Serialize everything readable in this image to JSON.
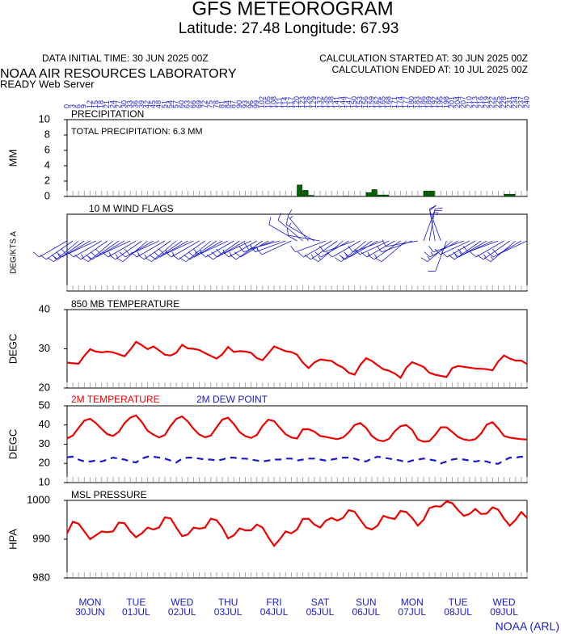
{
  "header": {
    "title": "GFS METEOROGRAM",
    "subtitle": "Latitude: 27.48 Longitude:  67.93",
    "data_time": "DATA INITIAL TIME: 30 JUN 2025 00Z",
    "calc_started": "CALCULATION STARTED AT: 30 JUN 2025 00Z",
    "calc_ended": "CALCULATION ENDED AT: 10 JUL 2025 00Z",
    "lab": "NOAA AIR RESOURCES LABORATORY",
    "server": "READY Web Server"
  },
  "days": [
    {
      "day": "MON",
      "date": "30JUN"
    },
    {
      "day": "TUE",
      "date": "01JUL"
    },
    {
      "day": "WED",
      "date": "02JUL"
    },
    {
      "day": "THU",
      "date": "03JUL"
    },
    {
      "day": "FRI",
      "date": "04JUL"
    },
    {
      "day": "SAT",
      "date": "05JUL"
    },
    {
      "day": "SUN",
      "date": "06JUL"
    },
    {
      "day": "MON",
      "date": "07JUL"
    },
    {
      "day": "TUE",
      "date": "08JUL"
    },
    {
      "day": "WED",
      "date": "09JUL"
    }
  ],
  "footer": "NOAA (ARL)",
  "chart_data": [
    {
      "type": "bar",
      "title": "PRECIPITATION",
      "annotation": "TOTAL PRECIPITATION:   6.3 MM",
      "y_label": "MM",
      "color": "#006400",
      "x": [
        0,
        3,
        6,
        9,
        12,
        15,
        18,
        21,
        24,
        27,
        30,
        33,
        36,
        39,
        42,
        45,
        48,
        51,
        54,
        57,
        60,
        63,
        66,
        69,
        72,
        75,
        78,
        81,
        84,
        87,
        90,
        93,
        96,
        99,
        102,
        105,
        108,
        111,
        114,
        117,
        120,
        123,
        126,
        129,
        132,
        135,
        138,
        141,
        144,
        147,
        150,
        153,
        156,
        159,
        162,
        165,
        168,
        171,
        174,
        177,
        180,
        183,
        186,
        189,
        192,
        195,
        198,
        201,
        204,
        207,
        210,
        213,
        216,
        219,
        222,
        225,
        228,
        231,
        234,
        237,
        240
      ],
      "values": [
        0,
        0,
        0,
        0,
        0,
        0,
        0,
        0,
        0,
        0,
        0,
        0,
        0,
        0,
        0,
        0,
        0,
        0,
        0,
        0,
        0,
        0,
        0,
        0,
        0,
        0,
        0,
        0,
        0,
        0,
        0,
        0,
        0,
        0,
        0,
        0,
        0,
        0,
        0,
        0,
        1.5,
        0.8,
        0.15,
        0,
        0,
        0,
        0,
        0,
        0.05,
        0,
        0,
        0,
        0.5,
        0.9,
        0.2,
        0.2,
        0,
        0,
        0,
        0,
        0,
        0,
        0.7,
        0.7,
        0,
        0,
        0,
        0,
        0,
        0,
        0,
        0,
        0,
        0,
        0,
        0,
        0.3,
        0.3,
        0,
        0,
        0
      ],
      "ylim": [
        0,
        10
      ],
      "yticks": [
        0,
        2,
        4,
        6,
        8,
        10
      ]
    },
    {
      "type": "wind",
      "title": "10 M  WIND FLAGS",
      "y_label": "DEG/KTS  A",
      "color": "#1a1acd",
      "x": [
        0,
        3,
        6,
        9,
        12,
        15,
        18,
        21,
        24,
        27,
        30,
        33,
        36,
        39,
        42,
        45,
        48,
        51,
        54,
        57,
        60,
        63,
        66,
        69,
        72,
        75,
        78,
        81,
        84,
        87,
        90,
        93,
        96,
        99,
        102,
        105,
        108,
        111,
        114,
        117,
        120,
        123,
        126,
        129,
        132,
        135,
        138,
        141,
        144,
        147,
        150,
        153,
        156,
        159,
        162,
        165,
        168,
        171,
        174,
        177,
        180,
        183,
        186,
        189,
        192,
        195,
        198,
        201,
        204,
        207,
        210,
        213,
        216,
        219,
        222,
        225,
        228,
        231,
        234,
        237,
        240
      ],
      "directions": [
        240,
        235,
        230,
        235,
        240,
        245,
        240,
        235,
        230,
        235,
        240,
        245,
        240,
        235,
        230,
        240,
        245,
        240,
        235,
        230,
        235,
        240,
        245,
        240,
        235,
        230,
        235,
        240,
        245,
        240,
        235,
        240,
        245,
        240,
        235,
        240,
        250,
        255,
        250,
        245,
        300,
        310,
        320,
        300,
        280,
        250,
        240,
        235,
        230,
        240,
        250,
        240,
        230,
        235,
        240,
        250,
        245,
        240,
        235,
        230,
        250,
        260,
        20,
        10,
        350,
        340,
        200,
        230,
        240,
        250,
        245,
        240,
        235,
        240,
        245,
        250,
        240,
        235,
        230,
        240,
        245
      ],
      "speeds": [
        12,
        14,
        16,
        15,
        13,
        12,
        14,
        16,
        15,
        13,
        12,
        14,
        16,
        15,
        13,
        12,
        14,
        16,
        15,
        13,
        12,
        14,
        16,
        15,
        13,
        12,
        14,
        16,
        15,
        13,
        12,
        14,
        16,
        15,
        13,
        12,
        14,
        16,
        15,
        13,
        12,
        14,
        16,
        15,
        13,
        12,
        14,
        16,
        15,
        13,
        12,
        14,
        16,
        15,
        13,
        12,
        14,
        16,
        15,
        13,
        12,
        14,
        16,
        15,
        13,
        12,
        14,
        16,
        15,
        13,
        12,
        14,
        16,
        15,
        13,
        12,
        14,
        16,
        15,
        13,
        12
      ]
    },
    {
      "type": "line",
      "title": "850 MB  TEMPERATURE",
      "y_label": "DEGC",
      "color": "#ee0000",
      "x": [
        0,
        3,
        6,
        9,
        12,
        15,
        18,
        21,
        24,
        27,
        30,
        33,
        36,
        39,
        42,
        45,
        48,
        51,
        54,
        57,
        60,
        63,
        66,
        69,
        72,
        75,
        78,
        81,
        84,
        87,
        90,
        93,
        96,
        99,
        102,
        105,
        108,
        111,
        114,
        117,
        120,
        123,
        126,
        129,
        132,
        135,
        138,
        141,
        144,
        147,
        150,
        153,
        156,
        159,
        162,
        165,
        168,
        171,
        174,
        177,
        180,
        183,
        186,
        189,
        192,
        195,
        198,
        201,
        204,
        207,
        210,
        213,
        216,
        219,
        222,
        225,
        228,
        231,
        234,
        237,
        240
      ],
      "values": [
        26.5,
        26.3,
        26.2,
        28.2,
        29.9,
        29.3,
        29.1,
        29.3,
        29.1,
        28.6,
        28.1,
        29.8,
        31.8,
        30.9,
        29.9,
        30.6,
        29.6,
        28.5,
        28.3,
        29.0,
        31.0,
        30.1,
        30.0,
        29.7,
        28.9,
        28.2,
        27.5,
        28.6,
        30.5,
        29.2,
        29.4,
        29.3,
        29.0,
        27.6,
        27.1,
        28.8,
        30.6,
        30.0,
        29.4,
        29.2,
        28.5,
        26.5,
        25.1,
        26.5,
        27.3,
        27.1,
        26.9,
        25.9,
        25.2,
        23.9,
        23.4,
        25.9,
        27.6,
        26.9,
        25.8,
        24.8,
        24.4,
        23.7,
        22.6,
        25.2,
        26.6,
        26.0,
        25.4,
        23.9,
        23.4,
        23.1,
        22.8,
        25.1,
        25.6,
        25.4,
        25.2,
        25.0,
        24.9,
        24.8,
        24.5,
        26.8,
        28.3,
        27.5,
        27.0,
        27.0,
        26.1
      ],
      "ylim": [
        20,
        40
      ],
      "yticks": [
        20,
        30,
        40
      ]
    },
    {
      "type": "line",
      "y_label": "DEGC",
      "x": [
        0,
        3,
        6,
        9,
        12,
        15,
        18,
        21,
        24,
        27,
        30,
        33,
        36,
        39,
        42,
        45,
        48,
        51,
        54,
        57,
        60,
        63,
        66,
        69,
        72,
        75,
        78,
        81,
        84,
        87,
        90,
        93,
        96,
        99,
        102,
        105,
        108,
        111,
        114,
        117,
        120,
        123,
        126,
        129,
        132,
        135,
        138,
        141,
        144,
        147,
        150,
        153,
        156,
        159,
        162,
        165,
        168,
        171,
        174,
        177,
        180,
        183,
        186,
        189,
        192,
        195,
        198,
        201,
        204,
        207,
        210,
        213,
        216,
        219,
        222,
        225,
        228,
        231,
        234,
        237,
        240
      ],
      "series": [
        {
          "name": "2M TEMPERATURE",
          "color": "#ee0000",
          "dash": false,
          "values": [
            33.0,
            34.5,
            38.5,
            42.3,
            43.2,
            41.0,
            38.0,
            35.2,
            34.3,
            36.5,
            41.0,
            43.8,
            45.0,
            41.5,
            37.0,
            35.0,
            33.5,
            34.8,
            39.5,
            43.2,
            44.5,
            41.8,
            38.0,
            35.0,
            33.6,
            34.5,
            38.8,
            42.8,
            43.8,
            40.5,
            36.3,
            34.2,
            33.3,
            34.8,
            39.5,
            42.8,
            42.0,
            38.5,
            35.2,
            33.5,
            33.0,
            37.8,
            37.8,
            36.6,
            34.3,
            33.8,
            33.2,
            32.6,
            33.5,
            36.2,
            40.0,
            41.0,
            38.5,
            34.3,
            32.2,
            31.5,
            32.8,
            36.8,
            39.4,
            40.0,
            37.5,
            32.5,
            31.3,
            31.6,
            34.8,
            38.8,
            38.8,
            36.4,
            33.8,
            32.5,
            32.0,
            32.6,
            35.5,
            40.2,
            41.5,
            38.2,
            34.3,
            33.4,
            33.0,
            32.6,
            32.5
          ]
        },
        {
          "name": "2M  DEW POINT",
          "color": "#1a1acd",
          "dash": true,
          "values": [
            23.2,
            23.5,
            22.0,
            21.0,
            21.0,
            21.5,
            21.0,
            22.0,
            23.0,
            22.5,
            22.0,
            21.0,
            20.5,
            22.5,
            23.5,
            23.5,
            23.0,
            22.5,
            21.5,
            20.5,
            22.5,
            23.0,
            23.0,
            22.5,
            22.0,
            22.0,
            21.5,
            22.0,
            23.0,
            23.0,
            22.5,
            22.5,
            22.0,
            21.5,
            21.0,
            21.5,
            22.0,
            22.0,
            22.5,
            22.5,
            21.5,
            22.0,
            22.5,
            22.5,
            22.0,
            21.5,
            22.0,
            22.5,
            23.0,
            23.0,
            22.5,
            21.5,
            21.0,
            22.5,
            23.5,
            23.0,
            22.5,
            22.0,
            21.5,
            20.5,
            21.5,
            22.0,
            22.5,
            22.0,
            21.5,
            20.0,
            21.0,
            22.0,
            22.5,
            22.0,
            21.5,
            21.0,
            21.5,
            21.0,
            20.0,
            19.8,
            21.5,
            23.0,
            23.0,
            23.5,
            23.0
          ]
        }
      ],
      "ylim": [
        10,
        50
      ],
      "yticks": [
        10,
        20,
        30,
        40,
        50
      ]
    },
    {
      "type": "line",
      "title": "MSL PRESSURE",
      "y_label": "HPA",
      "color": "#ee0000",
      "x": [
        0,
        3,
        6,
        9,
        12,
        15,
        18,
        21,
        24,
        27,
        30,
        33,
        36,
        39,
        42,
        45,
        48,
        51,
        54,
        57,
        60,
        63,
        66,
        69,
        72,
        75,
        78,
        81,
        84,
        87,
        90,
        93,
        96,
        99,
        102,
        105,
        108,
        111,
        114,
        117,
        120,
        123,
        126,
        129,
        132,
        135,
        138,
        141,
        144,
        147,
        150,
        153,
        156,
        159,
        162,
        165,
        168,
        171,
        174,
        177,
        180,
        183,
        186,
        189,
        192,
        195,
        198,
        201,
        204,
        207,
        210,
        213,
        216,
        219,
        222,
        225,
        228,
        231,
        234,
        237,
        240
      ],
      "values": [
        991.5,
        994.5,
        994.0,
        992.0,
        990.0,
        991.0,
        992.0,
        991.8,
        992.0,
        994.3,
        994.1,
        992.0,
        990.5,
        991.5,
        993.0,
        992.5,
        993.0,
        995.6,
        995.4,
        993.0,
        990.8,
        991.2,
        993.0,
        992.7,
        993.0,
        995.3,
        994.9,
        993.0,
        990.2,
        991.0,
        992.8,
        992.3,
        992.3,
        993.8,
        993.0,
        990.5,
        988.3,
        990.0,
        992.0,
        991.5,
        992.5,
        995.2,
        995.3,
        993.8,
        993.0,
        994.8,
        995.5,
        994.8,
        995.5,
        997.5,
        997.1,
        995.0,
        993.0,
        992.5,
        993.5,
        996.0,
        995.5,
        995.2,
        997.3,
        997.0,
        995.5,
        993.5,
        995.0,
        998.0,
        998.5,
        998.4,
        999.7,
        999.3,
        997.5,
        996.0,
        996.5,
        997.8,
        996.5,
        996.6,
        998.2,
        997.6,
        995.3,
        993.5,
        995.0,
        997.0,
        995.5
      ],
      "ylim": [
        980,
        1000
      ],
      "yticks": [
        980,
        990,
        1000
      ]
    }
  ]
}
